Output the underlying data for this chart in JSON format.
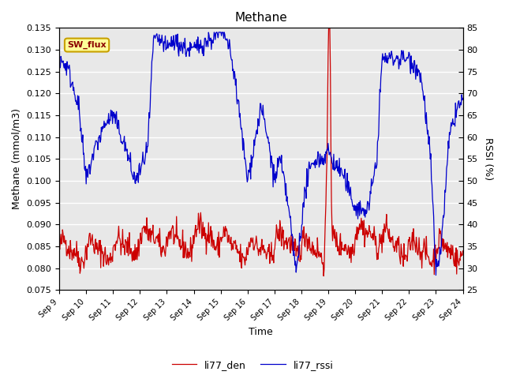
{
  "title": "Methane",
  "xlabel": "Time",
  "ylabel_left": "Methane (mmol/m3)",
  "ylabel_right": "RSSI (%)",
  "ylim_left": [
    0.075,
    0.135
  ],
  "ylim_right": [
    25,
    85
  ],
  "yticks_left": [
    0.075,
    0.08,
    0.085,
    0.09,
    0.095,
    0.1,
    0.105,
    0.11,
    0.115,
    0.12,
    0.125,
    0.13,
    0.135
  ],
  "yticks_right": [
    25,
    30,
    35,
    40,
    45,
    50,
    55,
    60,
    65,
    70,
    75,
    80,
    85
  ],
  "xtick_labels": [
    "Sep 9",
    "Sep 10",
    "Sep 11",
    "Sep 12",
    "Sep 13",
    "Sep 14",
    "Sep 15",
    "Sep 16",
    "Sep 17",
    "Sep 18",
    "Sep 19",
    "Sep 20",
    "Sep 21",
    "Sep 22",
    "Sep 23",
    "Sep 24"
  ],
  "bg_color": "#e8e8e8",
  "line1_color": "#cc0000",
  "line2_color": "#0000cc",
  "legend_labels": [
    "li77_den",
    "li77_rssi"
  ],
  "annotation_text": "SW_flux",
  "annotation_bg": "#ffff99",
  "annotation_border": "#c8a000",
  "figsize": [
    6.4,
    4.8
  ],
  "dpi": 100
}
